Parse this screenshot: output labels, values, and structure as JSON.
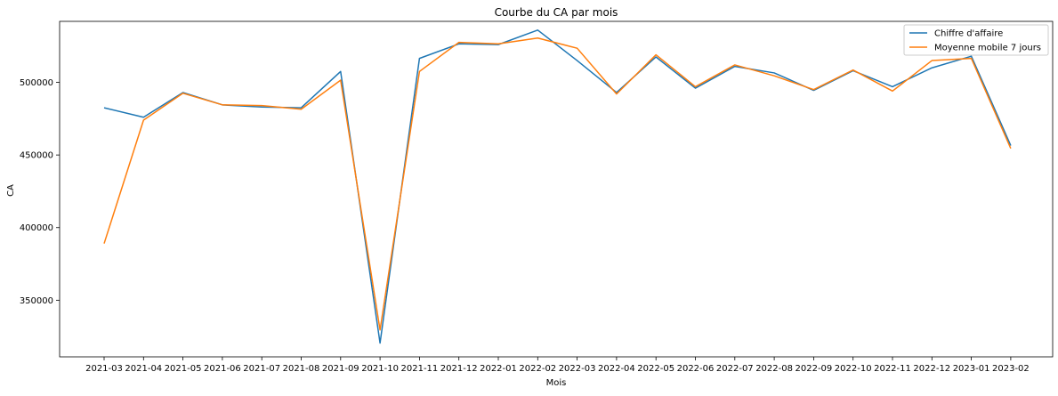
{
  "chart_data": {
    "type": "line",
    "title": "Courbe du CA par mois",
    "xlabel": "Mois",
    "ylabel": "CA",
    "categories": [
      "2021-03",
      "2021-04",
      "2021-05",
      "2021-06",
      "2021-07",
      "2021-08",
      "2021-09",
      "2021-10",
      "2021-11",
      "2021-12",
      "2022-01",
      "2022-02",
      "2022-03",
      "2022-04",
      "2022-05",
      "2022-06",
      "2022-07",
      "2022-08",
      "2022-09",
      "2022-10",
      "2022-11",
      "2022-12",
      "2023-01",
      "2023-02"
    ],
    "y_ticks": [
      350000,
      400000,
      450000,
      500000
    ],
    "ylim": [
      311000,
      542000
    ],
    "grid": false,
    "legend_position": "top-right",
    "series": [
      {
        "name": "Chiffre d'affaire",
        "color": "#1f77b4",
        "values": [
          482500,
          476000,
          493000,
          484500,
          483000,
          482500,
          507500,
          320500,
          516500,
          526500,
          526000,
          536000,
          515000,
          493000,
          517500,
          496000,
          511000,
          506500,
          494500,
          508000,
          497000,
          510000,
          518000,
          456500
        ]
      },
      {
        "name": "Moyenne mobile 7 jours",
        "color": "#ff7f0e",
        "values": [
          389000,
          474000,
          492500,
          484500,
          484000,
          481500,
          501500,
          329500,
          507500,
          527500,
          526500,
          530500,
          523500,
          492000,
          519000,
          497000,
          512000,
          504500,
          495000,
          508500,
          494000,
          515000,
          516500,
          454500
        ]
      }
    ]
  }
}
